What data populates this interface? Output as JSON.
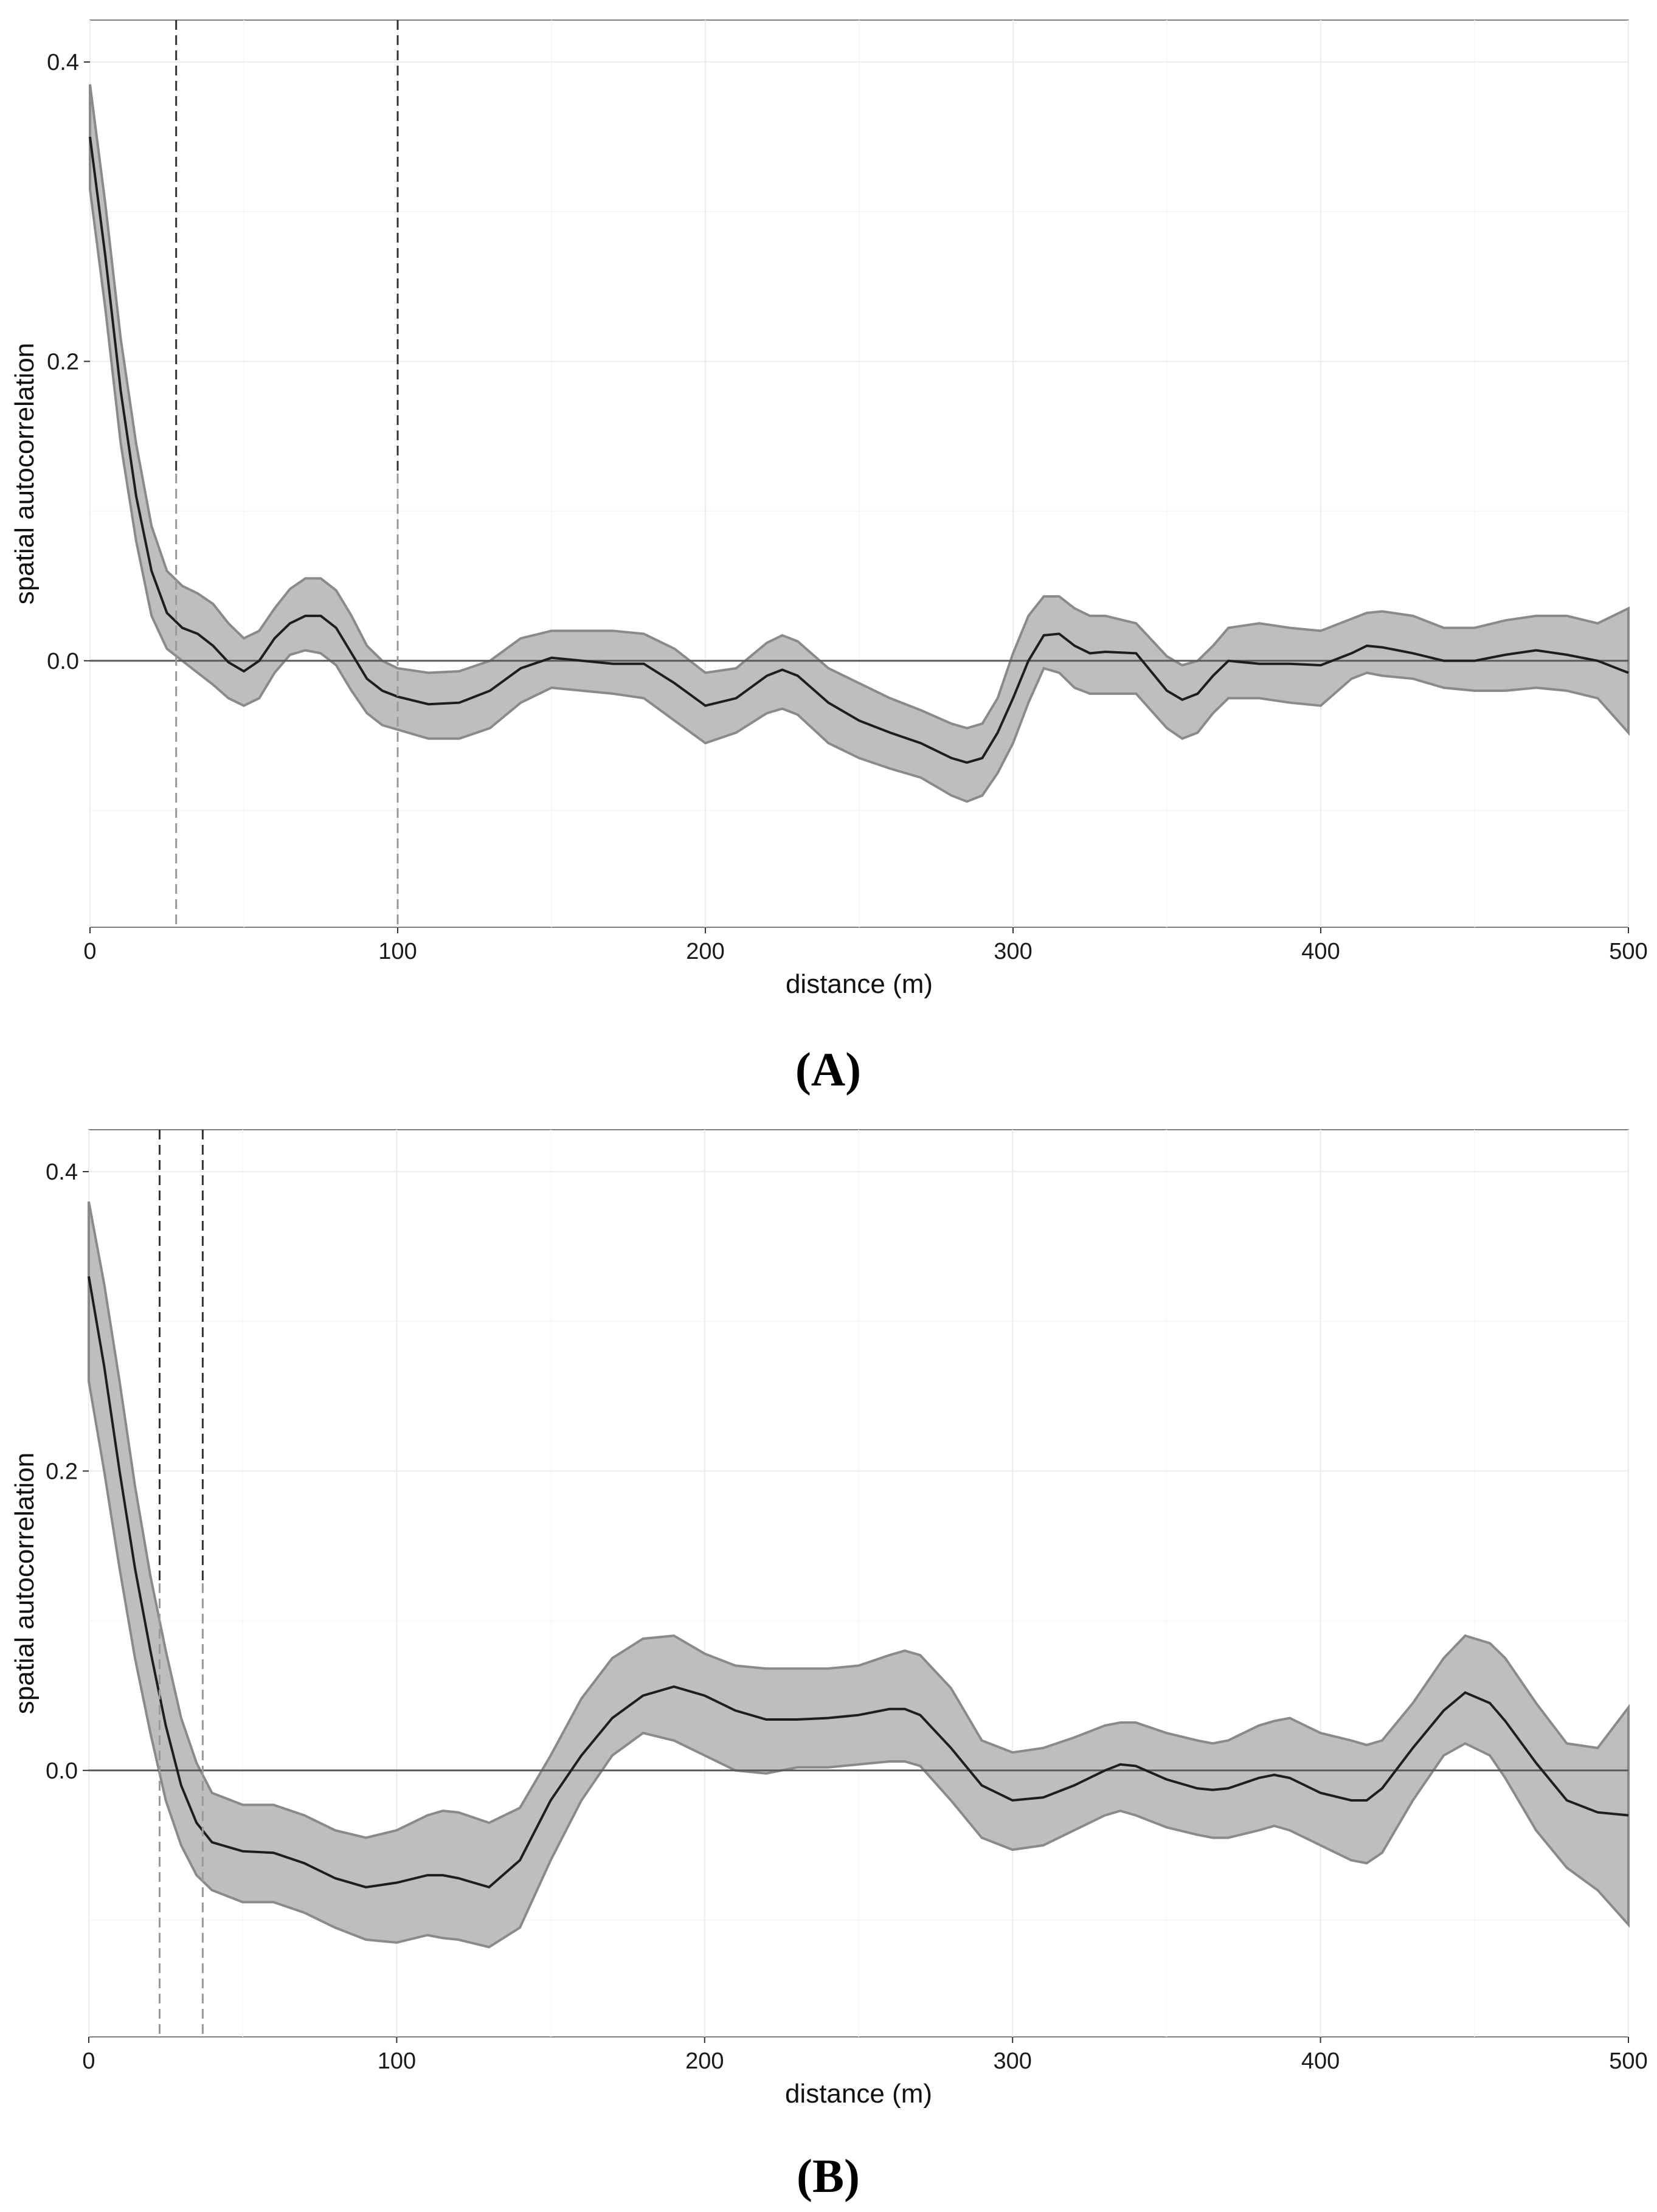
{
  "colors": {
    "ribbon_fill": "#bebebe",
    "ribbon_edge": "#8a8a8a",
    "mean_line": "#1e1e1e",
    "zero_line": "#5a5a5a",
    "vline_dark": "#333333",
    "vline_light": "#999999"
  },
  "chart_data": [
    {
      "type": "line",
      "panel_label": "(A)",
      "xlabel": "distance (m)",
      "ylabel": "spatial autocorrelation",
      "xlim": [
        0,
        500
      ],
      "ylim": [
        -0.178,
        0.428
      ],
      "x_ticks": [
        0,
        100,
        200,
        300,
        400,
        500
      ],
      "x_tick_labels": [
        "0",
        "100",
        "200",
        "300",
        "400",
        "500"
      ],
      "y_ticks": [
        0.0,
        0.2,
        0.4
      ],
      "y_tick_labels": [
        "0.0",
        "0.2",
        "0.4"
      ],
      "grid": true,
      "horizontal_reference": 0.0,
      "vertical_dashed_lines": [
        28,
        100
      ],
      "x": [
        0,
        5,
        10,
        15,
        20,
        25,
        30,
        35,
        40,
        45,
        50,
        55,
        60,
        65,
        70,
        75,
        80,
        85,
        90,
        95,
        100,
        110,
        120,
        130,
        140,
        150,
        160,
        170,
        180,
        190,
        200,
        210,
        220,
        225,
        230,
        240,
        250,
        260,
        270,
        280,
        285,
        290,
        295,
        300,
        305,
        310,
        315,
        320,
        325,
        330,
        340,
        350,
        355,
        360,
        365,
        370,
        380,
        390,
        400,
        410,
        415,
        420,
        430,
        440,
        450,
        460,
        470,
        480,
        490,
        500
      ],
      "series": [
        {
          "role": "mean",
          "values": [
            0.35,
            0.27,
            0.18,
            0.11,
            0.06,
            0.032,
            0.022,
            0.018,
            0.01,
            -0.001,
            -0.007,
            0.0,
            0.015,
            0.025,
            0.03,
            0.03,
            0.022,
            0.005,
            -0.012,
            -0.02,
            -0.024,
            -0.029,
            -0.028,
            -0.02,
            -0.005,
            0.002,
            0.0,
            -0.002,
            -0.002,
            -0.015,
            -0.03,
            -0.025,
            -0.01,
            -0.006,
            -0.01,
            -0.028,
            -0.04,
            -0.048,
            -0.055,
            -0.065,
            -0.068,
            -0.065,
            -0.048,
            -0.025,
            0.0,
            0.017,
            0.018,
            0.01,
            0.005,
            0.006,
            0.005,
            -0.02,
            -0.026,
            -0.022,
            -0.01,
            0.0,
            -0.002,
            -0.002,
            -0.003,
            0.005,
            0.01,
            0.009,
            0.005,
            0.0,
            0.0,
            0.004,
            0.007,
            0.004,
            0.0,
            -0.008
          ]
        },
        {
          "role": "upper",
          "values": [
            0.385,
            0.305,
            0.215,
            0.145,
            0.09,
            0.06,
            0.05,
            0.045,
            0.038,
            0.025,
            0.015,
            0.02,
            0.035,
            0.048,
            0.055,
            0.055,
            0.047,
            0.03,
            0.01,
            0.0,
            -0.005,
            -0.008,
            -0.007,
            0.0,
            0.015,
            0.02,
            0.02,
            0.02,
            0.018,
            0.008,
            -0.008,
            -0.005,
            0.012,
            0.017,
            0.013,
            -0.005,
            -0.015,
            -0.025,
            -0.033,
            -0.042,
            -0.045,
            -0.042,
            -0.025,
            0.005,
            0.03,
            0.043,
            0.043,
            0.035,
            0.03,
            0.03,
            0.025,
            0.003,
            -0.003,
            0.0,
            0.01,
            0.022,
            0.025,
            0.022,
            0.02,
            0.028,
            0.032,
            0.033,
            0.03,
            0.022,
            0.022,
            0.027,
            0.03,
            0.03,
            0.025,
            0.035
          ]
        },
        {
          "role": "lower",
          "values": [
            0.315,
            0.235,
            0.145,
            0.08,
            0.03,
            0.008,
            0.0,
            -0.008,
            -0.016,
            -0.025,
            -0.03,
            -0.025,
            -0.008,
            0.004,
            0.007,
            0.005,
            -0.003,
            -0.02,
            -0.035,
            -0.043,
            -0.046,
            -0.052,
            -0.052,
            -0.045,
            -0.028,
            -0.018,
            -0.02,
            -0.022,
            -0.025,
            -0.04,
            -0.055,
            -0.048,
            -0.035,
            -0.032,
            -0.036,
            -0.055,
            -0.065,
            -0.072,
            -0.078,
            -0.09,
            -0.094,
            -0.09,
            -0.075,
            -0.055,
            -0.028,
            -0.005,
            -0.008,
            -0.018,
            -0.022,
            -0.022,
            -0.022,
            -0.045,
            -0.052,
            -0.048,
            -0.035,
            -0.025,
            -0.025,
            -0.028,
            -0.03,
            -0.012,
            -0.008,
            -0.01,
            -0.012,
            -0.018,
            -0.02,
            -0.02,
            -0.018,
            -0.02,
            -0.025,
            -0.048
          ]
        }
      ]
    },
    {
      "type": "line",
      "panel_label": "(B)",
      "xlabel": "distance (m)",
      "ylabel": "spatial autocorrelation",
      "xlim": [
        0,
        500
      ],
      "ylim": [
        -0.178,
        0.428
      ],
      "x_ticks": [
        0,
        100,
        200,
        300,
        400,
        500
      ],
      "x_tick_labels": [
        "0",
        "100",
        "200",
        "300",
        "400",
        "500"
      ],
      "y_ticks": [
        0.0,
        0.2,
        0.4
      ],
      "y_tick_labels": [
        "0.0",
        "0.2",
        "0.4"
      ],
      "grid": true,
      "horizontal_reference": 0.0,
      "vertical_dashed_lines": [
        23,
        37
      ],
      "x": [
        0,
        5,
        10,
        15,
        20,
        25,
        30,
        35,
        40,
        50,
        60,
        70,
        80,
        90,
        100,
        110,
        115,
        120,
        130,
        140,
        150,
        160,
        170,
        180,
        190,
        200,
        210,
        220,
        230,
        240,
        250,
        260,
        265,
        270,
        280,
        290,
        300,
        310,
        320,
        330,
        335,
        340,
        350,
        360,
        365,
        370,
        380,
        385,
        390,
        400,
        410,
        415,
        420,
        430,
        440,
        447,
        455,
        460,
        470,
        480,
        490,
        500
      ],
      "series": [
        {
          "role": "mean",
          "values": [
            0.33,
            0.27,
            0.2,
            0.135,
            0.08,
            0.03,
            -0.01,
            -0.035,
            -0.048,
            -0.054,
            -0.055,
            -0.062,
            -0.072,
            -0.078,
            -0.075,
            -0.07,
            -0.07,
            -0.072,
            -0.078,
            -0.06,
            -0.02,
            0.01,
            0.035,
            0.05,
            0.056,
            0.05,
            0.04,
            0.034,
            0.034,
            0.035,
            0.037,
            0.041,
            0.041,
            0.037,
            0.015,
            -0.01,
            -0.02,
            -0.018,
            -0.01,
            0.0,
            0.004,
            0.003,
            -0.006,
            -0.012,
            -0.013,
            -0.012,
            -0.005,
            -0.003,
            -0.005,
            -0.015,
            -0.02,
            -0.02,
            -0.012,
            0.015,
            0.04,
            0.052,
            0.045,
            0.033,
            0.005,
            -0.02,
            -0.028,
            -0.03
          ]
        },
        {
          "role": "upper",
          "values": [
            0.38,
            0.325,
            0.26,
            0.19,
            0.13,
            0.08,
            0.035,
            0.005,
            -0.015,
            -0.023,
            -0.023,
            -0.03,
            -0.04,
            -0.045,
            -0.04,
            -0.03,
            -0.027,
            -0.028,
            -0.035,
            -0.025,
            0.01,
            0.048,
            0.075,
            0.088,
            0.09,
            0.078,
            0.07,
            0.068,
            0.068,
            0.068,
            0.07,
            0.077,
            0.08,
            0.077,
            0.055,
            0.02,
            0.012,
            0.015,
            0.022,
            0.03,
            0.032,
            0.032,
            0.025,
            0.02,
            0.018,
            0.02,
            0.03,
            0.033,
            0.035,
            0.025,
            0.02,
            0.017,
            0.02,
            0.045,
            0.075,
            0.09,
            0.085,
            0.075,
            0.045,
            0.018,
            0.015,
            0.042
          ]
        },
        {
          "role": "lower",
          "values": [
            0.26,
            0.2,
            0.135,
            0.075,
            0.025,
            -0.02,
            -0.05,
            -0.07,
            -0.08,
            -0.088,
            -0.088,
            -0.095,
            -0.105,
            -0.113,
            -0.115,
            -0.11,
            -0.112,
            -0.113,
            -0.118,
            -0.105,
            -0.06,
            -0.02,
            0.01,
            0.025,
            0.02,
            0.01,
            0.0,
            -0.002,
            0.002,
            0.002,
            0.004,
            0.006,
            0.006,
            0.003,
            -0.02,
            -0.045,
            -0.053,
            -0.05,
            -0.04,
            -0.03,
            -0.027,
            -0.03,
            -0.038,
            -0.043,
            -0.045,
            -0.045,
            -0.04,
            -0.037,
            -0.04,
            -0.05,
            -0.06,
            -0.062,
            -0.055,
            -0.02,
            0.01,
            0.018,
            0.01,
            -0.005,
            -0.04,
            -0.065,
            -0.08,
            -0.103
          ]
        }
      ]
    }
  ]
}
